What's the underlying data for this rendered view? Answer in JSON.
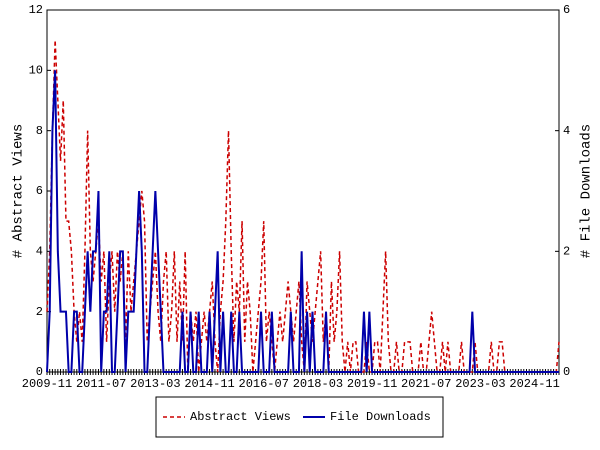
{
  "chart_data": {
    "type": "line",
    "categories": [
      "2009-11",
      null,
      null,
      null,
      null,
      null,
      null,
      null,
      null,
      null,
      null,
      null,
      null,
      null,
      null,
      null,
      null,
      null,
      null,
      null,
      "2011-07",
      null,
      null,
      null,
      null,
      null,
      null,
      null,
      null,
      null,
      null,
      null,
      null,
      null,
      null,
      null,
      null,
      null,
      null,
      null,
      "2013-03",
      null,
      null,
      null,
      null,
      null,
      null,
      null,
      null,
      null,
      null,
      null,
      null,
      null,
      null,
      null,
      null,
      null,
      null,
      null,
      "2014-11",
      null,
      null,
      null,
      null,
      null,
      null,
      null,
      null,
      null,
      null,
      null,
      null,
      null,
      null,
      null,
      null,
      null,
      null,
      null,
      "2016-07",
      null,
      null,
      null,
      null,
      null,
      null,
      null,
      null,
      null,
      null,
      null,
      null,
      null,
      null,
      null,
      null,
      null,
      null,
      null,
      "2018-03",
      null,
      null,
      null,
      null,
      null,
      null,
      null,
      null,
      null,
      null,
      null,
      null,
      null,
      null,
      null,
      null,
      null,
      null,
      null,
      "2019-11",
      null,
      null,
      null,
      null,
      null,
      null,
      null,
      null,
      null,
      null,
      null,
      null,
      null,
      null,
      null,
      null,
      null,
      null,
      null,
      "2021-07",
      null,
      null,
      null,
      null,
      null,
      null,
      null,
      null,
      null,
      null,
      null,
      null,
      null,
      null,
      null,
      null,
      null,
      null,
      null,
      "2023-03",
      null,
      null,
      null,
      null,
      null,
      null,
      null,
      null,
      null,
      null,
      null,
      null,
      null,
      null,
      null,
      null,
      null,
      null,
      null,
      "2024-11",
      null,
      null,
      null,
      null,
      null,
      null,
      null,
      null,
      null
    ],
    "series": [
      {
        "name": "Abstract Views",
        "color": "#cc0000",
        "dash": true,
        "values": [
          2,
          4,
          8,
          11,
          9,
          7,
          9,
          5,
          5,
          4,
          2,
          1,
          2,
          1,
          4,
          8,
          4,
          3,
          4,
          5,
          3,
          4,
          1,
          3,
          4,
          2,
          4,
          3,
          4,
          1,
          4,
          2,
          3,
          4,
          5,
          6,
          5,
          1,
          2,
          3,
          4,
          2,
          1,
          3,
          4,
          1,
          2,
          4,
          1,
          3,
          1,
          4,
          0,
          2,
          1,
          2,
          0,
          1,
          2,
          1,
          2,
          3,
          1,
          0,
          2,
          3,
          5,
          8,
          4,
          1,
          3,
          2,
          5,
          1,
          3,
          2,
          0,
          1,
          2,
          3,
          5,
          1,
          2,
          1,
          0,
          1,
          2,
          1,
          2,
          3,
          2,
          1,
          2,
          3,
          1,
          0,
          3,
          2,
          1,
          2,
          3,
          4,
          1,
          2,
          0,
          3,
          1,
          2,
          4,
          1,
          0,
          1,
          0,
          1,
          1,
          0,
          0,
          0,
          1,
          0,
          0,
          1,
          1,
          0,
          2,
          4,
          1,
          0,
          0,
          1,
          0,
          0,
          1,
          1,
          1,
          0,
          0,
          0,
          1,
          0,
          0,
          1,
          2,
          1,
          0,
          0,
          1,
          0,
          1,
          0,
          0,
          0,
          0,
          1,
          0,
          0,
          0,
          0,
          1,
          0,
          0,
          0,
          0,
          0,
          1,
          0,
          0,
          1,
          1,
          0,
          0,
          0,
          0,
          0,
          0,
          0,
          0,
          0,
          0,
          0,
          0,
          0,
          0,
          0,
          0,
          0,
          0,
          0,
          0,
          1
        ]
      },
      {
        "name": "File Downloads",
        "color": "#0000aa",
        "dash": false,
        "axis": "y2",
        "values": [
          0,
          1,
          4,
          5,
          2,
          1,
          1,
          1,
          0,
          0,
          1,
          1,
          0,
          0,
          1,
          2,
          1,
          2,
          2,
          3,
          0,
          1,
          1,
          2,
          0,
          0,
          1,
          2,
          2,
          0,
          1,
          1,
          1,
          2,
          3,
          2,
          0,
          0,
          1,
          2,
          3,
          2,
          1,
          0,
          0,
          0,
          0,
          0,
          0,
          0,
          1,
          0,
          0,
          1,
          0,
          0,
          1,
          0,
          0,
          0,
          1,
          0,
          1,
          2,
          0,
          1,
          0,
          0,
          1,
          0,
          0,
          1,
          0,
          0,
          0,
          0,
          0,
          0,
          0,
          1,
          0,
          0,
          0,
          1,
          0,
          0,
          0,
          0,
          0,
          0,
          1,
          0,
          0,
          0,
          2,
          0,
          1,
          0,
          1,
          0,
          0,
          0,
          0,
          1,
          0,
          0,
          0,
          0,
          0,
          0,
          0,
          0,
          0,
          0,
          0,
          0,
          0,
          1,
          0,
          1,
          0,
          0,
          0,
          0,
          0,
          0,
          0,
          0,
          0,
          0,
          0,
          0,
          0,
          0,
          0,
          0,
          0,
          0,
          0,
          0,
          0,
          0,
          0,
          0,
          0,
          0,
          0,
          0,
          0,
          0,
          0,
          0,
          0,
          0,
          0,
          0,
          0,
          1,
          0,
          0,
          0,
          0,
          0,
          0,
          0,
          0,
          0,
          0,
          0,
          0,
          0,
          0,
          0,
          0,
          0,
          0,
          0,
          0,
          0,
          0,
          0,
          0,
          0,
          0,
          0,
          0,
          0,
          0,
          0,
          0
        ]
      }
    ],
    "y_label": "# Abstract Views",
    "y2_label": "# File Downloads",
    "ylim": [
      0,
      12
    ],
    "yticks": [
      0,
      2,
      4,
      6,
      8,
      10,
      12
    ],
    "y2lim": [
      0,
      6
    ],
    "y2ticks": [
      0,
      2,
      4,
      6
    ],
    "legend": "bottom"
  }
}
